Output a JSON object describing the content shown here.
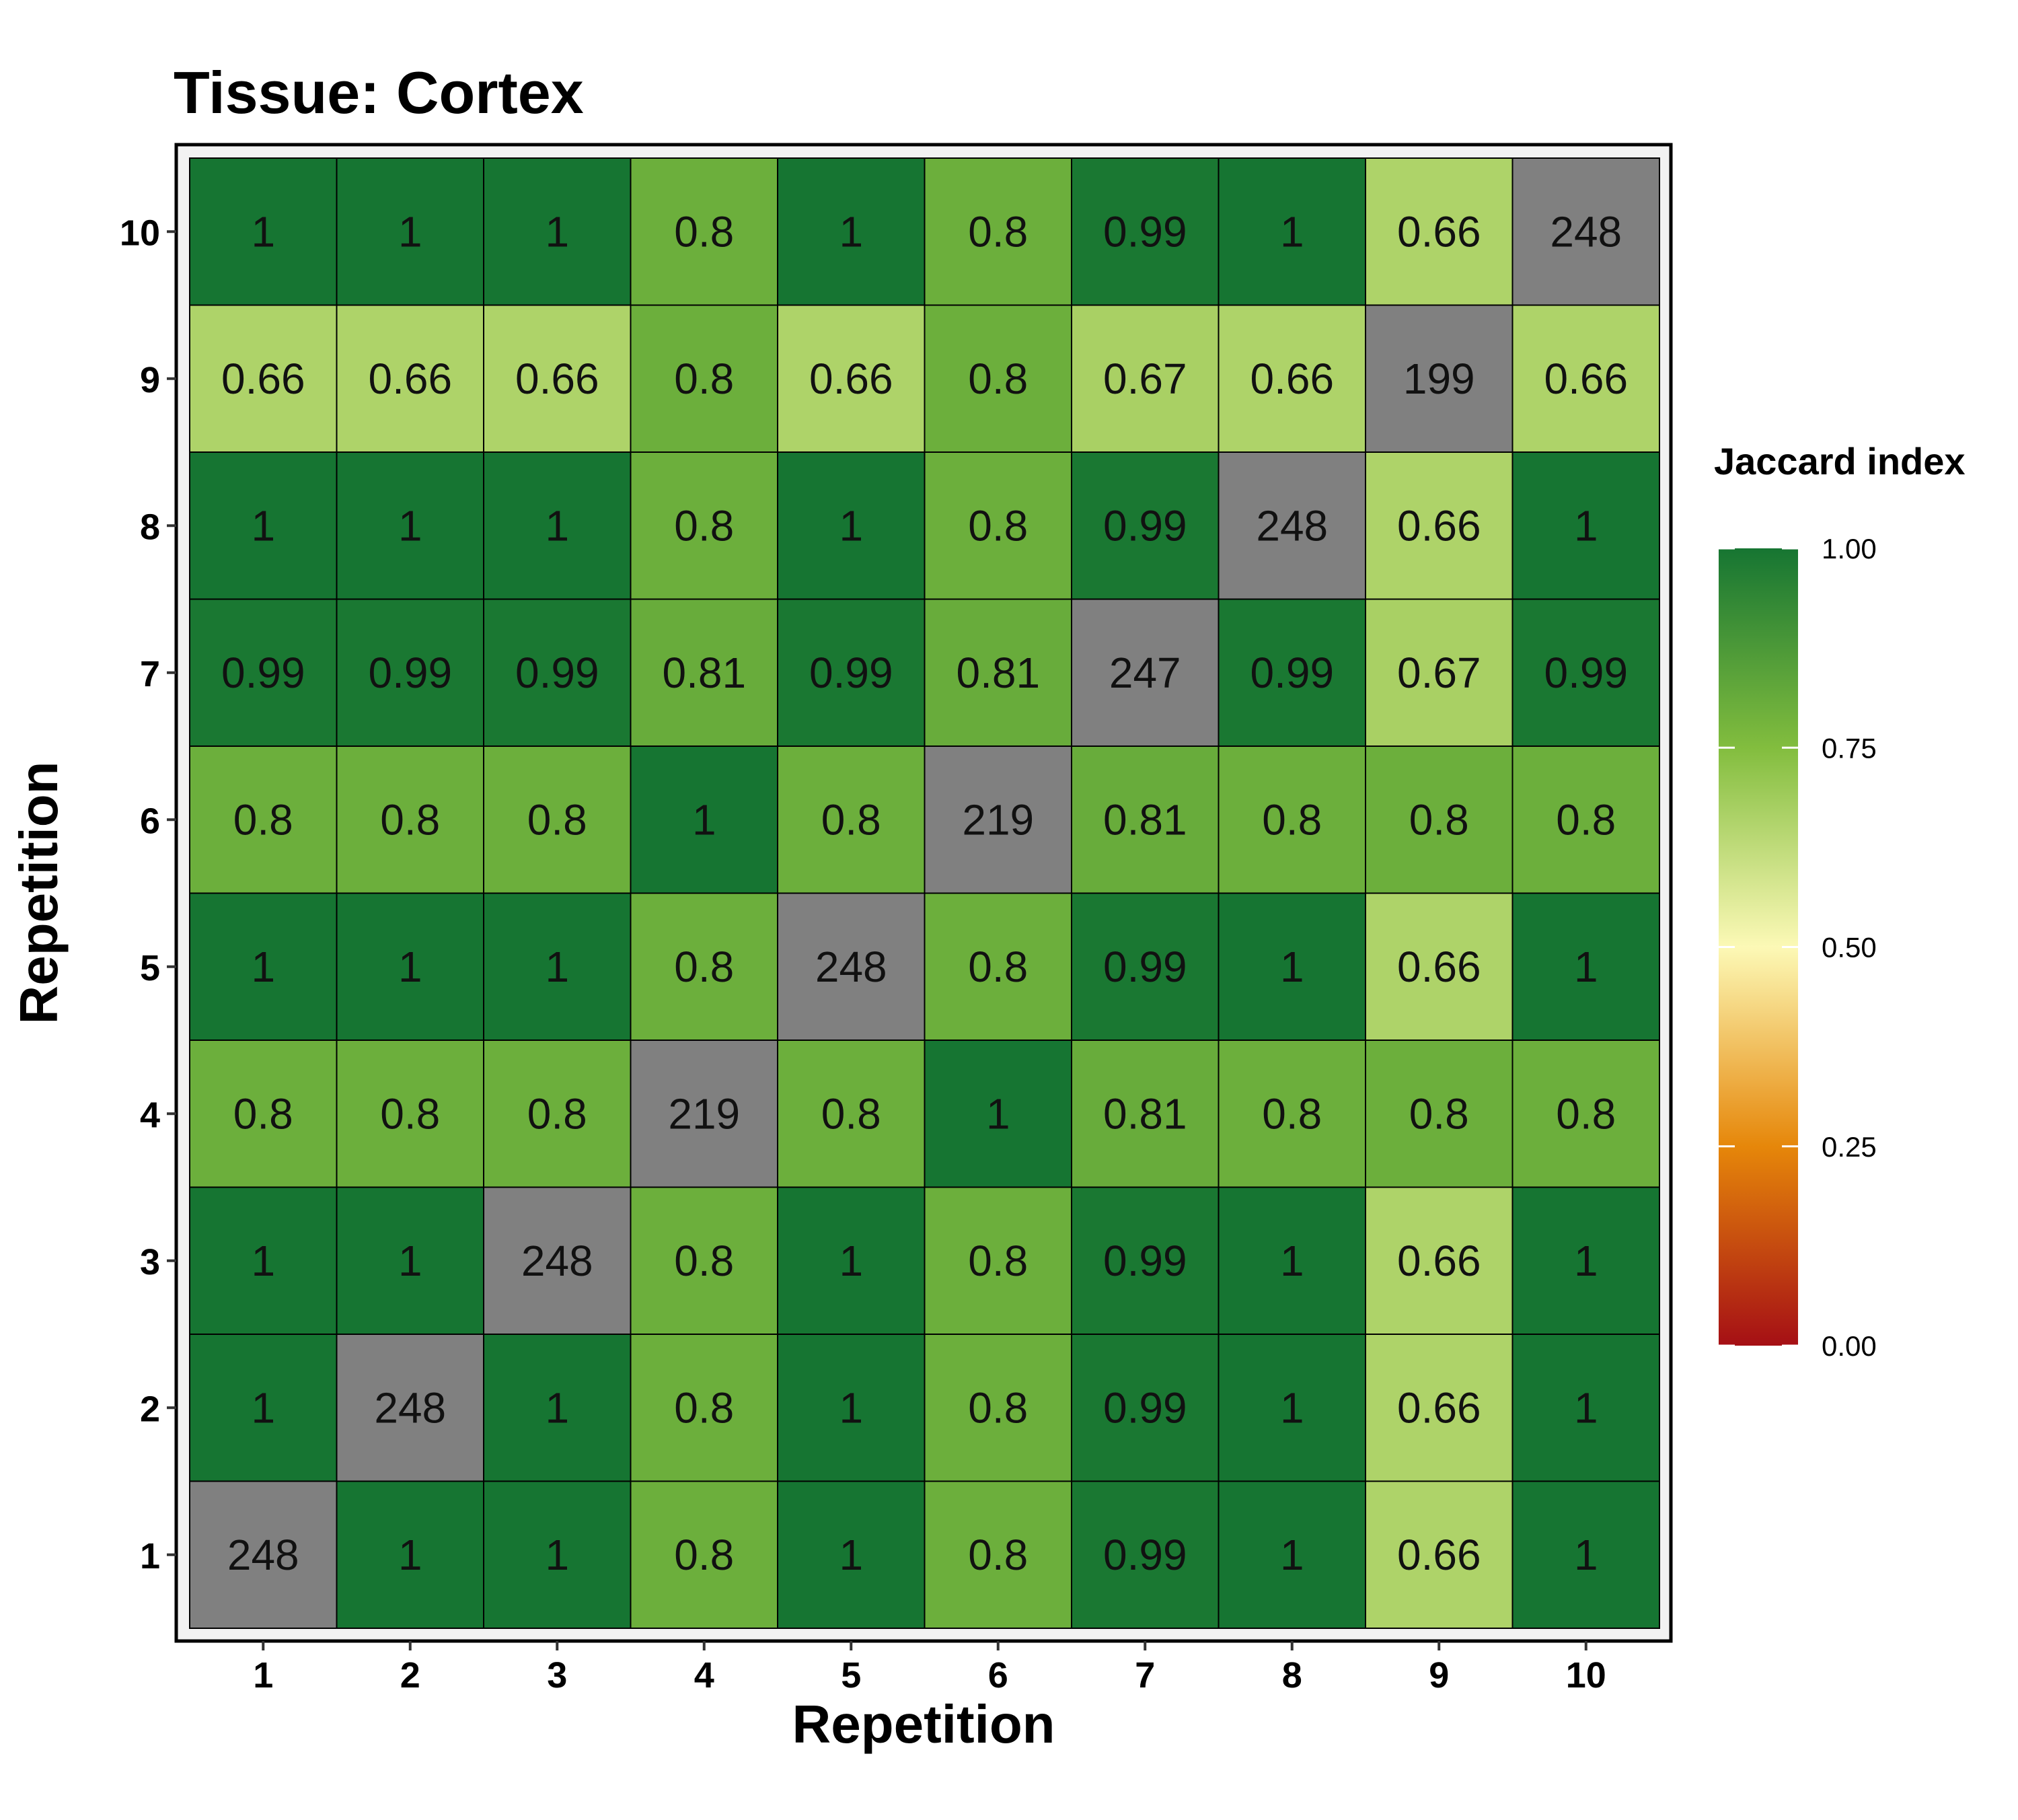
{
  "chart_data": {
    "type": "heatmap",
    "title": "Tissue: Cortex",
    "xlabel": "Repetition",
    "ylabel": "Repetition",
    "x_categories": [
      "1",
      "2",
      "3",
      "4",
      "5",
      "6",
      "7",
      "8",
      "9",
      "10"
    ],
    "y_categories": [
      "1",
      "2",
      "3",
      "4",
      "5",
      "6",
      "7",
      "8",
      "9",
      "10"
    ],
    "rows_bottom_to_top": [
      [
        "248",
        "1",
        "1",
        "0.8",
        "1",
        "0.8",
        "0.99",
        "1",
        "0.66",
        "1"
      ],
      [
        "1",
        "248",
        "1",
        "0.8",
        "1",
        "0.8",
        "0.99",
        "1",
        "0.66",
        "1"
      ],
      [
        "1",
        "1",
        "248",
        "0.8",
        "1",
        "0.8",
        "0.99",
        "1",
        "0.66",
        "1"
      ],
      [
        "0.8",
        "0.8",
        "0.8",
        "219",
        "0.8",
        "1",
        "0.81",
        "0.8",
        "0.8",
        "0.8"
      ],
      [
        "1",
        "1",
        "1",
        "0.8",
        "248",
        "0.8",
        "0.99",
        "1",
        "0.66",
        "1"
      ],
      [
        "0.8",
        "0.8",
        "0.8",
        "1",
        "0.8",
        "219",
        "0.81",
        "0.8",
        "0.8",
        "0.8"
      ],
      [
        "0.99",
        "0.99",
        "0.99",
        "0.81",
        "0.99",
        "0.81",
        "247",
        "0.99",
        "0.67",
        "0.99"
      ],
      [
        "1",
        "1",
        "1",
        "0.8",
        "1",
        "0.8",
        "0.99",
        "248",
        "0.66",
        "1"
      ],
      [
        "0.66",
        "0.66",
        "0.66",
        "0.8",
        "0.66",
        "0.8",
        "0.67",
        "0.66",
        "199",
        "0.66"
      ],
      [
        "1",
        "1",
        "1",
        "0.8",
        "1",
        "0.8",
        "0.99",
        "1",
        "0.66",
        "248"
      ]
    ],
    "diagonal_color": "#808080",
    "legend": {
      "title": "Jaccard index",
      "ticks": [
        "0.00",
        "0.25",
        "0.50",
        "0.75",
        "1.00"
      ],
      "range": [
        0,
        1
      ],
      "colors": [
        "#a50f15",
        "#e6870a",
        "#fcf9b6",
        "#82bd3e",
        "#167532"
      ],
      "placement": "right"
    },
    "grid": false
  }
}
